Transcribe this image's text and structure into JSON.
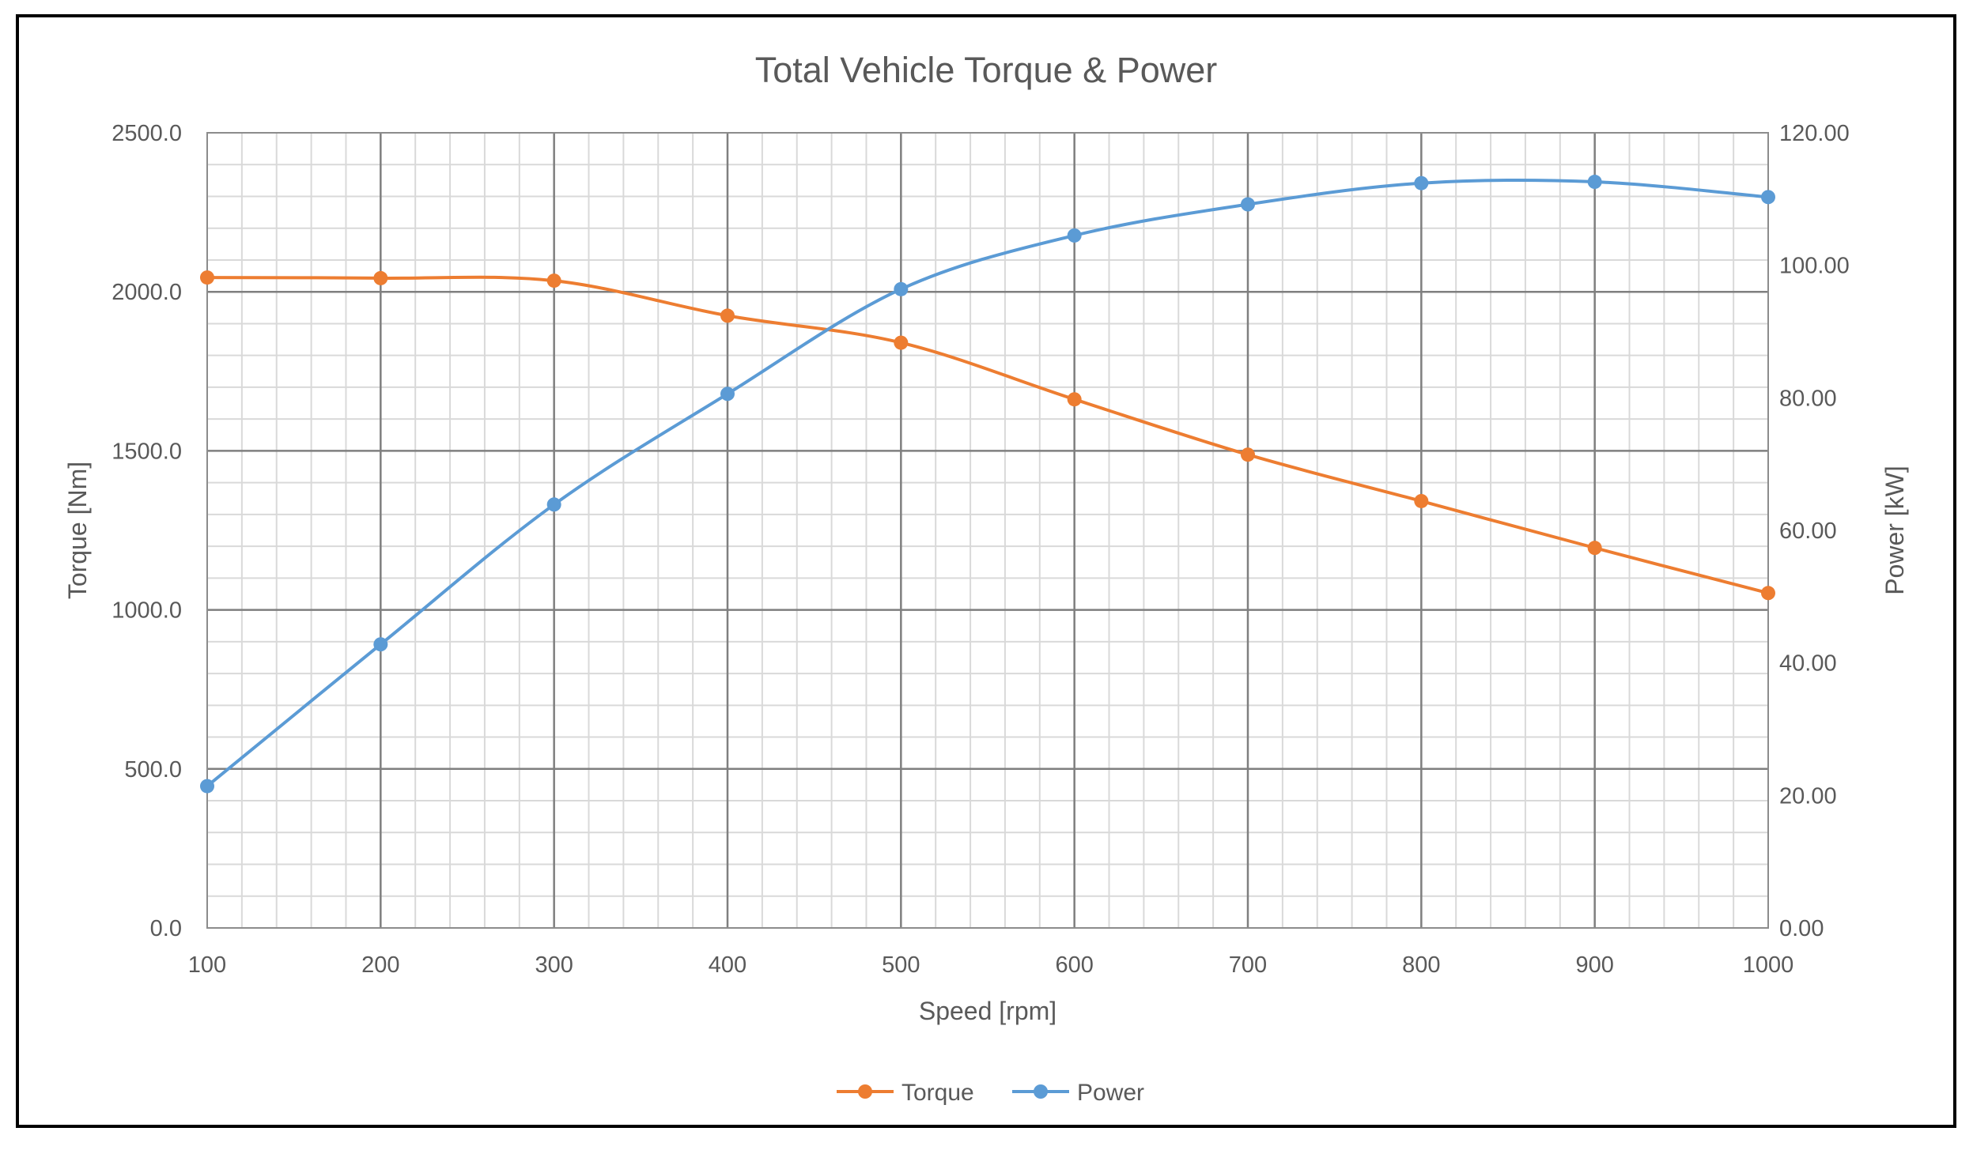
{
  "chart_data": {
    "type": "line",
    "title": "Total Vehicle Torque & Power",
    "xlabel": "Speed [rpm]",
    "ylabel_left": "Torque [Nm]",
    "ylabel_right": "Power [kW]",
    "x": [
      100,
      200,
      300,
      400,
      500,
      600,
      700,
      800,
      900,
      1000
    ],
    "xlim": [
      100,
      1000
    ],
    "xticks": [
      "100",
      "200",
      "300",
      "400",
      "500",
      "600",
      "700",
      "800",
      "900",
      "1000"
    ],
    "ylim_left": [
      0,
      2500
    ],
    "yticks_left": [
      "0.0",
      "500.0",
      "1000.0",
      "1500.0",
      "2000.0",
      "2500.0"
    ],
    "ylim_right": [
      0,
      120
    ],
    "yticks_right": [
      "0.00",
      "20.00",
      "40.00",
      "60.00",
      "80.00",
      "100.00",
      "120.00"
    ],
    "grid": true,
    "legend_position": "bottom",
    "series": [
      {
        "name": "Torque",
        "axis": "left",
        "color": "#ED7D31",
        "values": [
          2045,
          2043,
          2035,
          1925,
          1840,
          1662,
          1488,
          1342,
          1195,
          1053
        ]
      },
      {
        "name": "Power",
        "axis": "right",
        "color": "#5B9BD5",
        "values": [
          21.4,
          42.8,
          63.9,
          80.6,
          96.4,
          104.5,
          109.2,
          112.4,
          112.6,
          110.3
        ]
      }
    ]
  }
}
